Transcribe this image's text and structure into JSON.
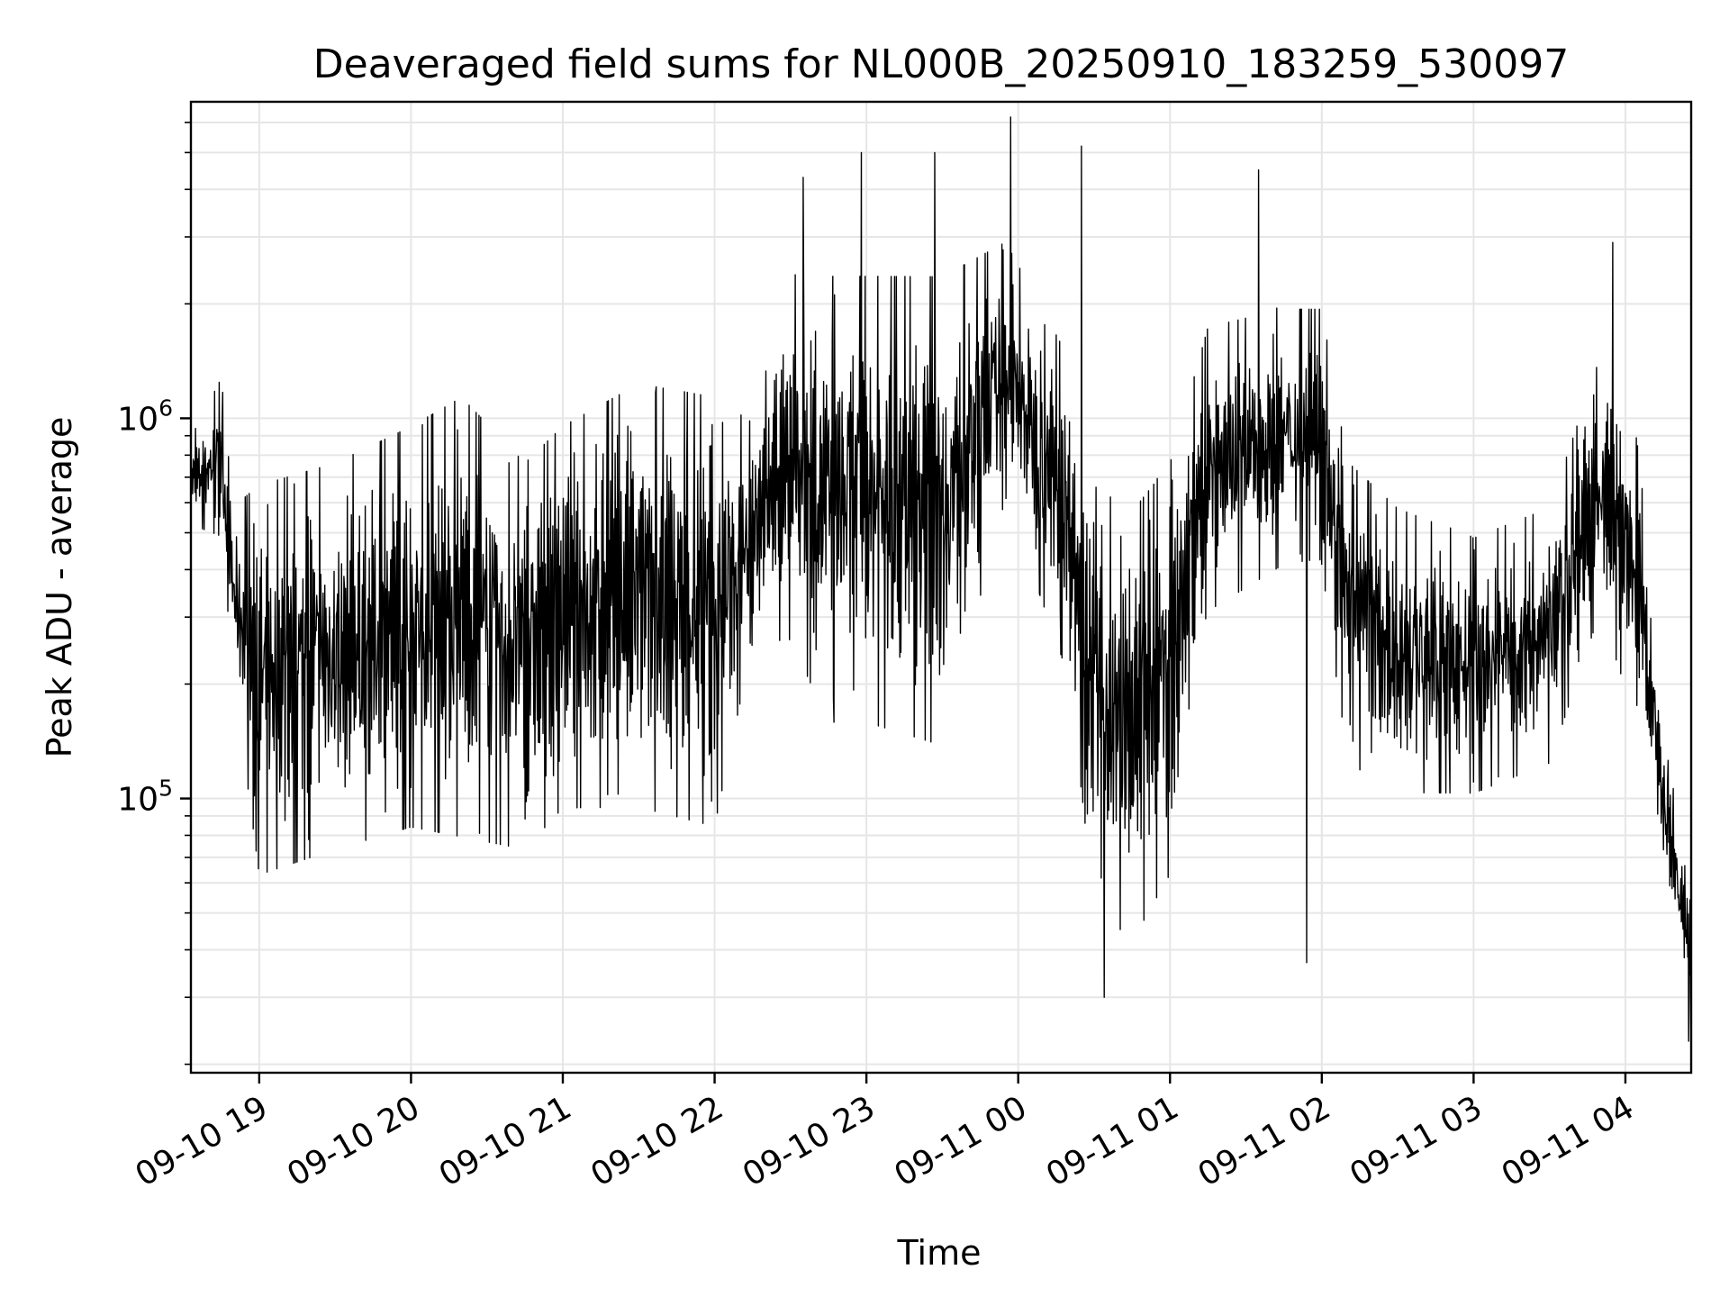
{
  "chart_data": {
    "type": "line",
    "title": "Deaveraged field sums for NL000B_20250910_183259_530097",
    "xlabel": "Time",
    "ylabel": "Peak ADU - average",
    "y_scale": "log",
    "ylim": [
      19000,
      6800000
    ],
    "xlim": [
      "2025-09-10 18:33",
      "2025-09-11 04:26"
    ],
    "grid": true,
    "x_ticks": [
      "09-10 19",
      "09-10 20",
      "09-10 21",
      "09-10 22",
      "09-10 23",
      "09-11 00",
      "09-11 01",
      "09-11 02",
      "09-11 03",
      "09-11 04"
    ],
    "y_ticks": [
      {
        "value": 100000,
        "base": "10",
        "exp": "5"
      },
      {
        "value": 1000000,
        "base": "10",
        "exp": "6"
      }
    ],
    "series": [
      {
        "color": "#000000",
        "profile": [
          {
            "t": "2025-09-10 18:33",
            "low": 520000,
            "high": 900000
          },
          {
            "t": "2025-09-10 18:45",
            "low": 480000,
            "high": 1300000
          },
          {
            "t": "2025-09-10 18:50",
            "low": 200000,
            "high": 600000
          },
          {
            "t": "2025-09-10 19:00",
            "low": 60000,
            "high": 700000
          },
          {
            "t": "2025-09-10 19:30",
            "low": 70000,
            "high": 800000
          },
          {
            "t": "2025-09-10 20:00",
            "low": 80000,
            "high": 1000000
          },
          {
            "t": "2025-09-10 20:20",
            "low": 75000,
            "high": 1200000
          },
          {
            "t": "2025-09-10 20:45",
            "low": 70000,
            "high": 800000
          },
          {
            "t": "2025-09-10 21:00",
            "low": 90000,
            "high": 1000000
          },
          {
            "t": "2025-09-10 21:30",
            "low": 90000,
            "high": 1300000
          },
          {
            "t": "2025-09-10 22:00",
            "low": 80000,
            "high": 1200000
          },
          {
            "t": "2025-09-10 22:15",
            "low": 250000,
            "high": 1000000
          },
          {
            "t": "2025-09-10 22:30",
            "low": 250000,
            "high": 2500000
          },
          {
            "t": "2025-09-10 22:45",
            "low": 150000,
            "high": 2500000
          },
          {
            "t": "2025-09-10 23:00",
            "low": 150000,
            "high": 2500000
          },
          {
            "t": "2025-09-10 23:30",
            "low": 130000,
            "high": 2500000
          },
          {
            "t": "2025-09-10 23:55",
            "low": 600000,
            "high": 3000000
          },
          {
            "t": "2025-09-11 00:20",
            "low": 200000,
            "high": 1500000
          },
          {
            "t": "2025-09-11 00:30",
            "low": 50000,
            "high": 700000
          },
          {
            "t": "2025-09-11 00:45",
            "low": 40000,
            "high": 600000
          },
          {
            "t": "2025-09-11 01:00",
            "low": 60000,
            "high": 800000
          },
          {
            "t": "2025-09-11 01:15",
            "low": 300000,
            "high": 1800000
          },
          {
            "t": "2025-09-11 01:45",
            "low": 400000,
            "high": 2000000
          },
          {
            "t": "2025-09-11 02:00",
            "low": 400000,
            "high": 2000000
          },
          {
            "t": "2025-09-11 02:10",
            "low": 120000,
            "high": 800000
          },
          {
            "t": "2025-09-11 02:30",
            "low": 100000,
            "high": 600000
          },
          {
            "t": "2025-09-11 03:00",
            "low": 100000,
            "high": 500000
          },
          {
            "t": "2025-09-11 03:30",
            "low": 120000,
            "high": 600000
          },
          {
            "t": "2025-09-11 03:50",
            "low": 300000,
            "high": 1500000
          },
          {
            "t": "2025-09-11 04:05",
            "low": 150000,
            "high": 900000
          },
          {
            "t": "2025-09-11 04:15",
            "low": 60000,
            "high": 150000
          },
          {
            "t": "2025-09-11 04:26",
            "low": 25000,
            "high": 60000
          }
        ],
        "notable_points": [
          {
            "t": "2025-09-10 22:35",
            "y": 4300000
          },
          {
            "t": "2025-09-10 22:58",
            "y": 5000000
          },
          {
            "t": "2025-09-10 23:27",
            "y": 5000000
          },
          {
            "t": "2025-09-10 23:57",
            "y": 6200000
          },
          {
            "t": "2025-09-11 00:25",
            "y": 5200000
          },
          {
            "t": "2025-09-11 00:34",
            "y": 30000
          },
          {
            "t": "2025-09-11 01:35",
            "y": 4500000
          },
          {
            "t": "2025-09-11 01:54",
            "y": 37000
          },
          {
            "t": "2025-09-11 03:55",
            "y": 2900000
          },
          {
            "t": "2025-09-11 04:25",
            "y": 23000
          }
        ]
      }
    ]
  }
}
